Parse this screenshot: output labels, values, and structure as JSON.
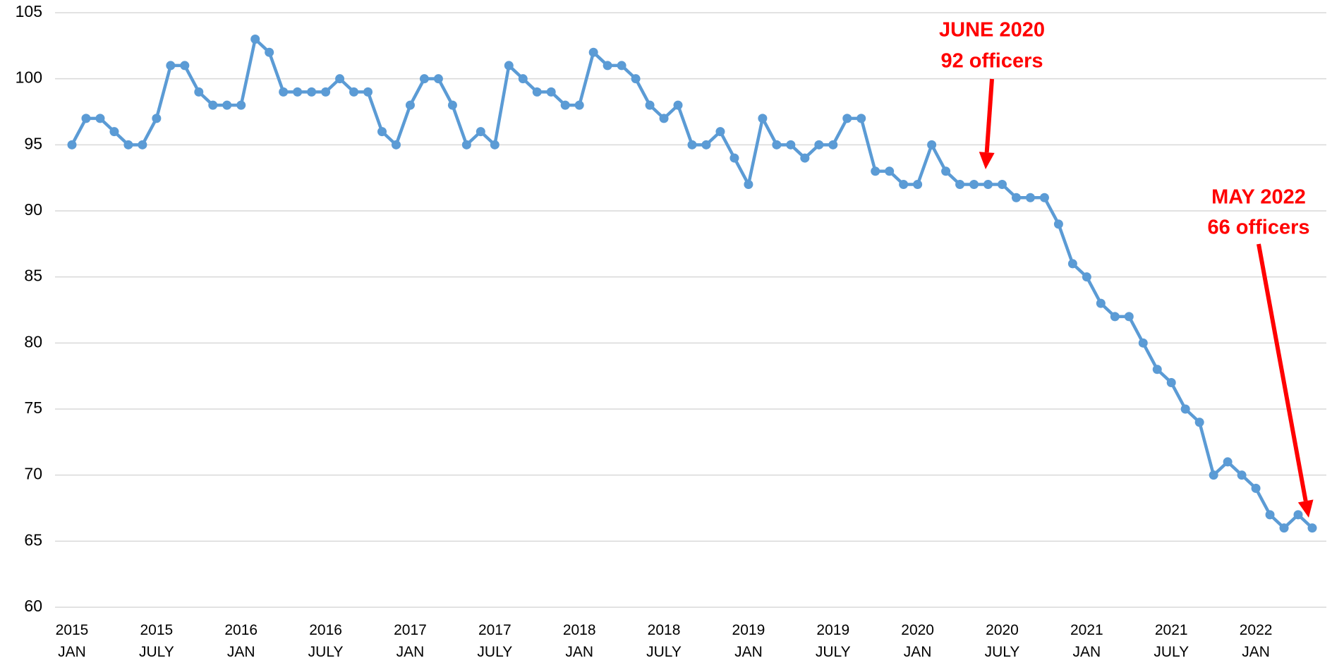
{
  "chart_data": {
    "type": "line",
    "categories": [
      "2015 JAN",
      null,
      null,
      null,
      null,
      null,
      "2015 JULY",
      null,
      null,
      null,
      null,
      null,
      "2016 JAN",
      null,
      null,
      null,
      null,
      null,
      "2016 JULY",
      null,
      null,
      null,
      null,
      null,
      "2017 JAN",
      null,
      null,
      null,
      null,
      null,
      "2017 JULY",
      null,
      null,
      null,
      null,
      null,
      "2018 JAN",
      null,
      null,
      null,
      null,
      null,
      "2018 JULY",
      null,
      null,
      null,
      null,
      null,
      "2019 JAN",
      null,
      null,
      null,
      null,
      null,
      "2019 JULY",
      null,
      null,
      null,
      null,
      null,
      "2020 JAN",
      null,
      null,
      null,
      null,
      null,
      "2020 JULY",
      null,
      null,
      null,
      null,
      null,
      "2021 JAN",
      null,
      null,
      null,
      null,
      null,
      "2021 JULY",
      null,
      null,
      null,
      null,
      null,
      "2022 JAN",
      null,
      null,
      null,
      null
    ],
    "series": [
      {
        "color": "#5b9bd5",
        "values": [
          95,
          97,
          97,
          96,
          95,
          95,
          97,
          101,
          101,
          99,
          98,
          98,
          98,
          103,
          102,
          99,
          99,
          99,
          99,
          100,
          99,
          99,
          96,
          95,
          98,
          100,
          100,
          98,
          95,
          96,
          95,
          101,
          100,
          99,
          99,
          98,
          98,
          102,
          101,
          101,
          100,
          98,
          97,
          98,
          95,
          95,
          96,
          94,
          92,
          97,
          95,
          95,
          94,
          95,
          95,
          97,
          97,
          93,
          93,
          92,
          92,
          95,
          93,
          92,
          92,
          92,
          92,
          91,
          91,
          91,
          89,
          86,
          85,
          83,
          82,
          82,
          80,
          78,
          77,
          75,
          74,
          70,
          71,
          70,
          69,
          67,
          66,
          67,
          66
        ]
      }
    ],
    "ylim": [
      60,
      105
    ],
    "yticks": [
      60,
      65,
      70,
      75,
      80,
      85,
      90,
      95,
      100,
      105
    ],
    "grid": true,
    "annotations": [
      {
        "lines": [
          "JUNE 2020",
          "92 officers"
        ],
        "color": "#ff0000"
      },
      {
        "lines": [
          "MAY 2022",
          "66 officers"
        ],
        "color": "#ff0000"
      }
    ]
  }
}
